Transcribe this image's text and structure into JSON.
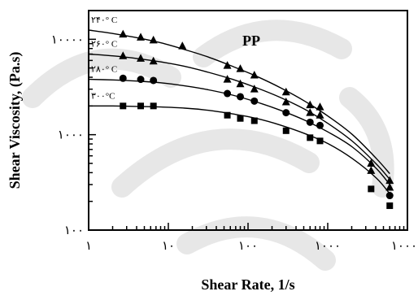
{
  "chart_data": {
    "type": "scatter",
    "title": "PP",
    "xlabel": "Shear Rate, 1/s",
    "ylabel": "Shear Viscosity, (Pa.s)",
    "xscale": "log",
    "yscale": "log",
    "xlim": [
      1,
      10000
    ],
    "ylim": [
      100,
      20000
    ],
    "grid": false,
    "x_tick_values": [
      1,
      10,
      100,
      1000,
      10000
    ],
    "x_tick_labels": [
      "۱",
      "۱۰",
      "۱۰۰",
      "۱۰۰۰",
      "۱۰۰۰۰"
    ],
    "y_tick_values": [
      100,
      1000,
      10000
    ],
    "y_tick_labels": [
      "۱۰۰",
      "۱۰۰۰",
      "۱۰۰۰۰"
    ],
    "series": [
      {
        "name": "۲۴۰° C",
        "marker": "triangle",
        "x": [
          2.7,
          4.5,
          6.5,
          15,
          55,
          80,
          120,
          300,
          600,
          800,
          3500,
          6000
        ],
        "y": [
          11300,
          10500,
          9800,
          8500,
          5300,
          4900,
          4200,
          2800,
          2050,
          1950,
          500,
          330
        ],
        "curve_x": [
          1,
          2,
          4,
          8,
          16,
          32,
          64,
          128,
          256,
          512,
          1024,
          2048,
          4096,
          6000
        ],
        "curve_y": [
          12500,
          11500,
          10400,
          9200,
          7800,
          6500,
          5200,
          4100,
          3100,
          2250,
          1550,
          1000,
          560,
          390
        ]
      },
      {
        "name": "۲۶۰° C",
        "marker": "triangle",
        "x": [
          2.7,
          4.5,
          6.5,
          55,
          80,
          120,
          300,
          600,
          800,
          3500,
          6000
        ],
        "y": [
          6700,
          6300,
          5900,
          3800,
          3400,
          3000,
          2200,
          1700,
          1600,
          420,
          280
        ],
        "curve_x": [
          1,
          2,
          4,
          8,
          16,
          32,
          64,
          128,
          256,
          512,
          1024,
          2048,
          4096,
          6000
        ],
        "curve_y": [
          7000,
          6700,
          6300,
          5800,
          5200,
          4500,
          3800,
          3100,
          2450,
          1850,
          1300,
          850,
          490,
          340
        ]
      },
      {
        "name": "۲۸۰° C",
        "marker": "circle",
        "x": [
          2.7,
          4.5,
          6.5,
          55,
          80,
          120,
          300,
          600,
          800,
          6000
        ],
        "y": [
          3900,
          3800,
          3700,
          2700,
          2500,
          2250,
          1700,
          1350,
          1250,
          230
        ],
        "curve_x": [
          1,
          2,
          4,
          8,
          16,
          32,
          64,
          128,
          256,
          512,
          1024,
          2048,
          4096,
          6000
        ],
        "curve_y": [
          3800,
          3750,
          3650,
          3500,
          3250,
          2950,
          2600,
          2200,
          1800,
          1420,
          1060,
          740,
          440,
          300
        ]
      },
      {
        "name": "۳۰۰°C",
        "marker": "square",
        "x": [
          2.7,
          4.5,
          6.5,
          55,
          80,
          120,
          300,
          600,
          800,
          3500,
          6000
        ],
        "y": [
          2000,
          2000,
          2000,
          1600,
          1480,
          1400,
          1100,
          930,
          860,
          270,
          180
        ],
        "curve_x": [
          1,
          2,
          4,
          8,
          16,
          32,
          64,
          128,
          256,
          512,
          1024,
          2048,
          4096,
          6000
        ],
        "curve_y": [
          2000,
          2000,
          1980,
          1950,
          1900,
          1800,
          1650,
          1480,
          1260,
          1030,
          800,
          560,
          350,
          240
        ]
      }
    ]
  }
}
